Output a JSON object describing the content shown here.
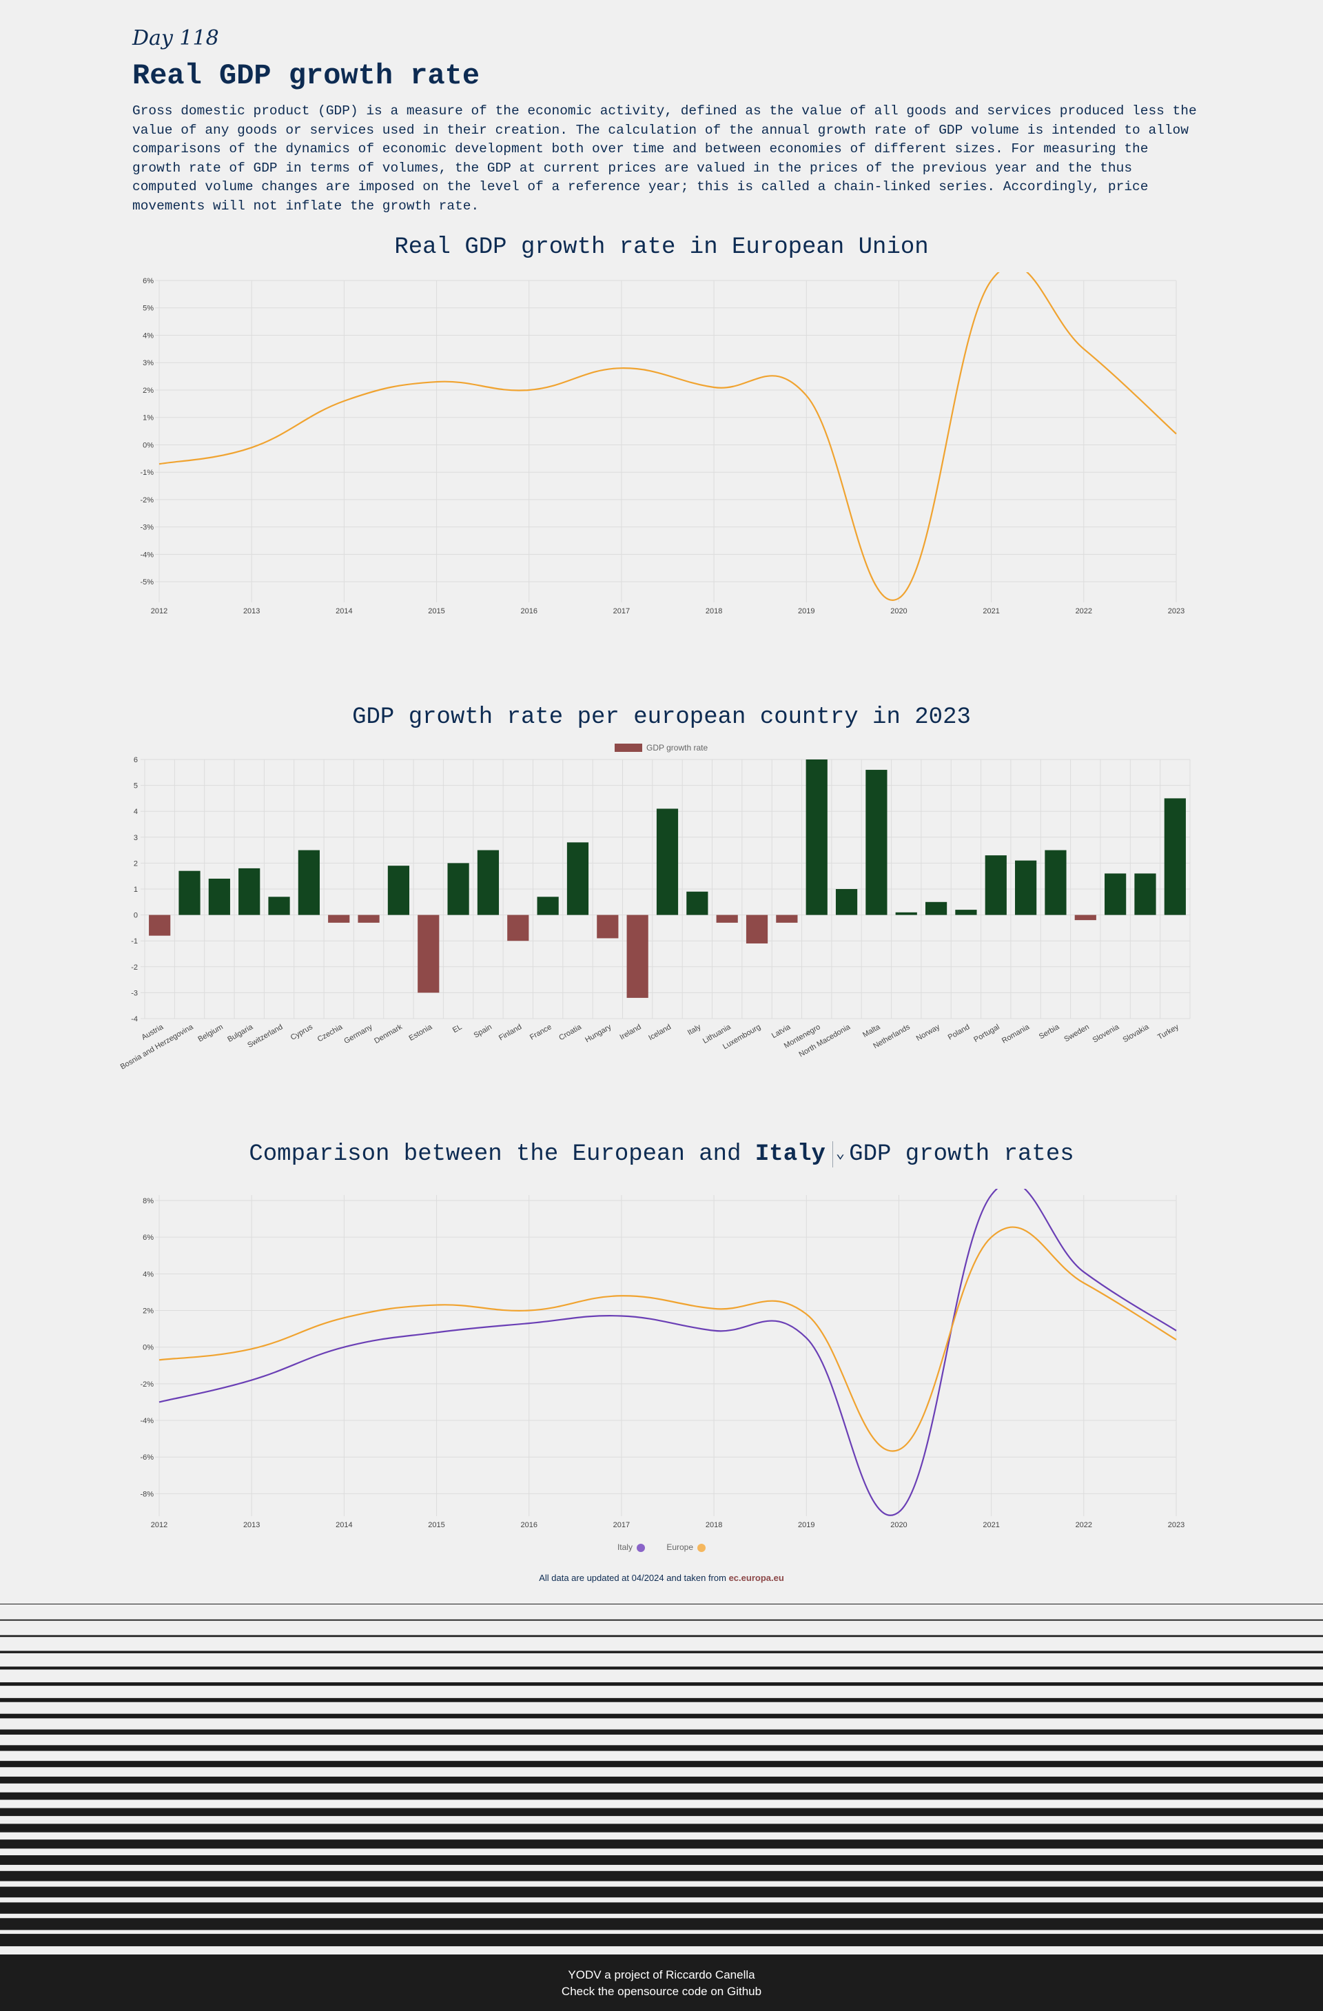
{
  "header": {
    "day": "Day 118",
    "title": "Real GDP growth rate",
    "intro": "Gross domestic product (GDP) is a measure of the economic activity, defined as the value of all goods and services produced less the value of any goods or services used in their creation. The calculation of the annual growth rate of GDP volume is intended to allow comparisons of the dynamics of economic development both over time and between economies of different sizes. For measuring the growth rate of GDP in terms of volumes, the GDP at current prices are valued in the prices of the previous year and the thus computed volume changes are imposed on the level of a reference year; this is called a chain-linked series. Accordingly, price movements will not inflate the growth rate."
  },
  "comparison": {
    "prefix": "Comparison between the European and",
    "selected_country": "Italy",
    "suffix": "GDP growth rates"
  },
  "footnote": {
    "text": "All data are updated at 04/2024 and taken from",
    "link": "ec.europa.eu"
  },
  "footer": {
    "line1": "YODV a project of Riccardo Canella",
    "line2": "Check the opensource code on Github"
  },
  "colors": {
    "europe": "#f0a330",
    "italy": "#6a3fb5",
    "positive": "#12461f",
    "negative": "#8f4a49",
    "text": "#0d2b52"
  },
  "chart_data": [
    {
      "type": "line",
      "title": "Real GDP growth rate in European Union",
      "x": [
        2012,
        2013,
        2014,
        2015,
        2016,
        2017,
        2018,
        2019,
        2020,
        2021,
        2022,
        2023
      ],
      "series": [
        {
          "values": [
            -0.7,
            -0.1,
            1.6,
            2.3,
            2.0,
            2.8,
            2.1,
            1.8,
            -5.6,
            6.0,
            3.5,
            0.4
          ]
        }
      ],
      "y_ticks": [
        "6%",
        "5%",
        "4%",
        "3%",
        "2%",
        "1%",
        "0%",
        "-1%",
        "-2%",
        "-3%",
        "-4%",
        "-5%"
      ],
      "ylim": [
        -5.6,
        6
      ],
      "grid": true
    },
    {
      "type": "bar",
      "title": "GDP growth rate per european country in 2023",
      "legend": "GDP growth rate",
      "categories": [
        "Austria",
        "Bosnia and Herzegovina",
        "Belgium",
        "Bulgaria",
        "Switzerland",
        "Cyprus",
        "Czechia",
        "Germany",
        "Denmark",
        "Estonia",
        "EL",
        "Spain",
        "Finland",
        "France",
        "Croatia",
        "Hungary",
        "Ireland",
        "Iceland",
        "Italy",
        "Lithuania",
        "Luxembourg",
        "Latvia",
        "Montenegro",
        "North Macedonia",
        "Malta",
        "Netherlands",
        "Norway",
        "Poland",
        "Portugal",
        "Romania",
        "Serbia",
        "Sweden",
        "Slovenia",
        "Slovakia",
        "Turkey"
      ],
      "values": [
        -0.8,
        1.7,
        1.4,
        1.8,
        0.7,
        2.5,
        -0.3,
        -0.3,
        1.9,
        -3.0,
        2.0,
        2.5,
        -1.0,
        0.7,
        2.8,
        -0.9,
        -3.2,
        4.1,
        0.9,
        -0.3,
        -1.1,
        -0.3,
        6.0,
        1.0,
        5.6,
        0.1,
        0.5,
        0.2,
        2.3,
        2.1,
        2.5,
        -0.2,
        1.6,
        1.6,
        4.5
      ],
      "y_ticks": [
        "6",
        "5",
        "4",
        "3",
        "2",
        "1",
        "0",
        "-1",
        "-2",
        "-3",
        "-4"
      ],
      "ylim": [
        -4,
        6
      ],
      "grid": true,
      "legend_position": "top-center"
    },
    {
      "type": "line",
      "x": [
        2012,
        2013,
        2014,
        2015,
        2016,
        2017,
        2018,
        2019,
        2020,
        2021,
        2022,
        2023
      ],
      "series": [
        {
          "name": "Italy",
          "values": [
            -3.0,
            -1.8,
            0.0,
            0.8,
            1.3,
            1.7,
            0.9,
            0.5,
            -9.0,
            8.3,
            4.1,
            0.9
          ]
        },
        {
          "name": "Europe",
          "values": [
            -0.7,
            -0.1,
            1.6,
            2.3,
            2.0,
            2.8,
            2.1,
            1.8,
            -5.6,
            6.0,
            3.5,
            0.4
          ]
        }
      ],
      "y_ticks": [
        "8%",
        "6%",
        "4%",
        "2%",
        "0%",
        "-2%",
        "-4%",
        "-6%",
        "-8%"
      ],
      "ylim": [
        -9,
        8.3
      ],
      "grid": true,
      "legend_position": "bottom-center"
    }
  ]
}
